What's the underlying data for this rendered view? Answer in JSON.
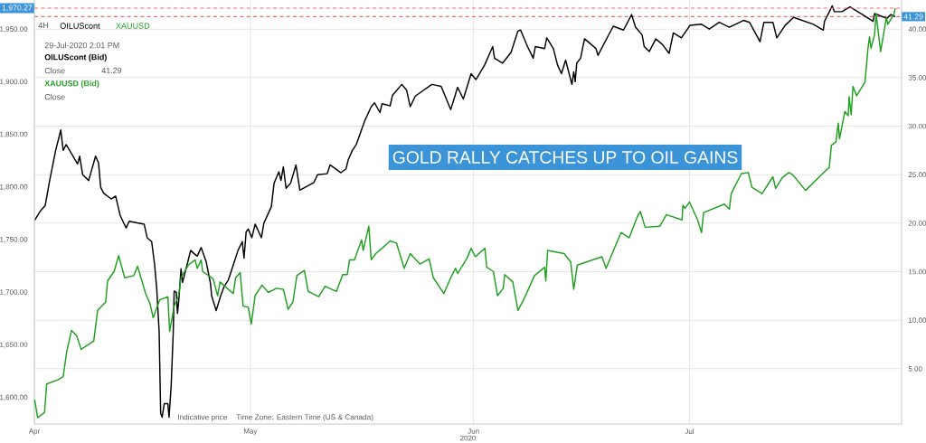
{
  "chart_data": {
    "type": "line",
    "title": "GOLD RALLY CATCHES UP TO OIL GAINS",
    "subtitle": "4H",
    "xlabel": "2020",
    "annotations": [
      "29-Jul-2020 2:01 PM",
      "OILUScont (Bid)",
      "Close",
      "41.29",
      "XAUUSD (Bid)",
      "Close",
      "Indicative price",
      "Time Zone: Eastern Time (US & Canada)"
    ],
    "xlim": [
      "2020-04-01",
      "2020-07-30T11:00"
    ],
    "xticks": [
      {
        "value": "2020-04-01",
        "label": "Apr"
      },
      {
        "value": "2020-05-01",
        "label": "May"
      },
      {
        "value": "2020-06-01",
        "label": "Jun"
      },
      {
        "value": "2020-07-01",
        "label": "Jul"
      }
    ],
    "ylim": [
      1575,
      1978
    ],
    "yticks": [
      {
        "value": 1600,
        "label": "1,600.00"
      },
      {
        "value": 1650,
        "label": "1,650.00"
      },
      {
        "value": 1700,
        "label": "1,700.00"
      },
      {
        "value": 1750,
        "label": "1,750.00"
      },
      {
        "value": 1800,
        "label": "1,800.00"
      },
      {
        "value": 1850,
        "label": "1,850.00"
      },
      {
        "value": 1900,
        "label": "1,900.00"
      },
      {
        "value": 1950,
        "label": "1,950.00"
      }
    ],
    "y2lim": [
      -0.7,
      43
    ],
    "y2ticks": [
      {
        "value": 5,
        "label": "5.00"
      },
      {
        "value": 10,
        "label": "10.00"
      },
      {
        "value": 15,
        "label": "15.00"
      },
      {
        "value": 20,
        "label": "20.00"
      },
      {
        "value": 25,
        "label": "25.00"
      },
      {
        "value": 30,
        "label": "30.00"
      },
      {
        "value": 35,
        "label": "35.00"
      },
      {
        "value": 40,
        "label": "40.00"
      }
    ],
    "grid": true,
    "legend": "top left",
    "ref_lines": [
      {
        "axis": "y",
        "value": 1970.27,
        "label": "1,970.27",
        "color": "#f26b6b",
        "line_style": "dashed"
      },
      {
        "axis": "y2",
        "value": 41.29,
        "label": "41.29",
        "color": "#f26b6b",
        "line_style": "dashed"
      }
    ],
    "series": [
      {
        "name": "OILUScont",
        "color": "#000000",
        "axis": "y2",
        "x": [
          "2020-04-01T01:00",
          "2020-04-01T21:00",
          "2020-04-02T12:00",
          "2020-04-03T03:00",
          "2020-04-03T23:00",
          "2020-04-04T16:00",
          "2020-04-05T00:00",
          "2020-04-05T10:00",
          "2020-04-07T00:00",
          "2020-04-07T07:00",
          "2020-04-07T17:00",
          "2020-04-08T13:00",
          "2020-04-09T12:00",
          "2020-04-09T22:00",
          "2020-04-10T05:00",
          "2020-04-10T15:00",
          "2020-04-11T16:00",
          "2020-04-12T07:00",
          "2020-04-12T22:00",
          "2020-04-13T18:00",
          "2020-04-14T04:00",
          "2020-04-16T06:00",
          "2020-04-16T16:00",
          "2020-04-17T07:00",
          "2020-04-17T17:00",
          "2020-04-18T00:00",
          "2020-04-18T08:00",
          "2020-04-18T13:00",
          "2020-04-18T18:00",
          "2020-04-19T01:00",
          "2020-04-19T13:00",
          "2020-04-19T17:00",
          "2020-04-20T00:00",
          "2020-04-20T07:00",
          "2020-04-20T10:00",
          "2020-04-20T17:00",
          "2020-04-20T21:00",
          "2020-04-21T01:00",
          "2020-04-21T09:00",
          "2020-04-21T14:00",
          "2020-04-22T05:00",
          "2020-04-22T17:00",
          "2020-04-23T03:00",
          "2020-04-23T15:00",
          "2020-04-24T04:00",
          "2020-04-24T21:00",
          "2020-04-25T11:00",
          "2020-04-25T15:00",
          "2020-04-26T06:00",
          "2020-04-26T21:00",
          "2020-04-27T09:00",
          "2020-04-27T22:00",
          "2020-04-28T11:00",
          "2020-04-29T07:00",
          "2020-04-29T21:00",
          "2020-04-30T03:00",
          "2020-04-30T10:00",
          "2020-04-30T17:00",
          "2020-05-01T05:00",
          "2020-05-01T16:00",
          "2020-05-02T13:00",
          "2020-05-02T21:00",
          "2020-05-03T22:00",
          "2020-05-04T07:00",
          "2020-05-04T23:00",
          "2020-05-05T06:00",
          "2020-05-05T14:00",
          "2020-05-05T23:00",
          "2020-05-06T14:00",
          "2020-05-07T08:00",
          "2020-05-07T21:00",
          "2020-05-09T20:00",
          "2020-05-10T08:00",
          "2020-05-11T16:00",
          "2020-05-12T02:00",
          "2020-05-13T14:00",
          "2020-05-14T07:00",
          "2020-05-14T14:00",
          "2020-05-15T04:00",
          "2020-05-15T17:00",
          "2020-05-16T22:00",
          "2020-05-17T19:00",
          "2020-05-18T06:00",
          "2020-05-19T00:00",
          "2020-05-19T07:00",
          "2020-05-20T10:00",
          "2020-05-20T18:00",
          "2020-05-22T01:00",
          "2020-05-22T17:00",
          "2020-05-23T05:00",
          "2020-05-23T22:00",
          "2020-05-26T05:00",
          "2020-05-27T12:00",
          "2020-05-28T20:00",
          "2020-05-29T19:00",
          "2020-05-30T14:00",
          "2020-05-31T16:00",
          "2020-06-01T08:00",
          "2020-06-02T13:00",
          "2020-06-03T16:00",
          "2020-06-03T22:00",
          "2020-06-05T01:00",
          "2020-06-06T05:00",
          "2020-06-07T04:00",
          "2020-06-07T13:00",
          "2020-06-08T12:00",
          "2020-06-09T07:00",
          "2020-06-09T14:00",
          "2020-06-10T21:00",
          "2020-06-11T04:00",
          "2020-06-12T02:00",
          "2020-06-12T16:00",
          "2020-06-13T05:00",
          "2020-06-13T19:00",
          "2020-06-14T16:00",
          "2020-06-14T22:00",
          "2020-06-15T03:00",
          "2020-06-15T08:00",
          "2020-06-15T21:00",
          "2020-06-16T10:00",
          "2020-06-18T00:00",
          "2020-06-18T07:00",
          "2020-06-19T15:00",
          "2020-06-20T10:00",
          "2020-06-21T20:00",
          "2020-06-22T23:00",
          "2020-06-23T12:00",
          "2020-06-24T10:00",
          "2020-06-24T17:00",
          "2020-06-25T10:00",
          "2020-06-26T08:00",
          "2020-06-27T06:00",
          "2020-06-28T04:00",
          "2020-06-28T18:00",
          "2020-06-29T21:00",
          "2020-07-01T02:00",
          "2020-07-02T16:00",
          "2020-07-03T18:00",
          "2020-07-05T03:00",
          "2020-07-06T13:00",
          "2020-07-08T12:00",
          "2020-07-09T08:00",
          "2020-07-10T19:00",
          "2020-07-11T08:00",
          "2020-07-12T14:00",
          "2020-07-13T03:00",
          "2020-07-14T07:00",
          "2020-07-15T11:00",
          "2020-07-18T05:00",
          "2020-07-19T14:00",
          "2020-07-19T18:00",
          "2020-07-20T20:00",
          "2020-07-21T03:00",
          "2020-07-22T04:00",
          "2020-07-23T07:00",
          "2020-07-24T20:00",
          "2020-07-26T12:00",
          "2020-07-26T17:00",
          "2020-07-28T10:00",
          "2020-07-28T23:00",
          "2020-07-29T14:00"
        ],
        "values": [
          20.3,
          21.3,
          21.8,
          24.4,
          27.5,
          29.6,
          27.5,
          28.1,
          26.1,
          26.9,
          25.0,
          24.4,
          26.9,
          26.2,
          23.7,
          23.1,
          22.5,
          22.8,
          20.8,
          19.5,
          20.2,
          19.9,
          18.5,
          18.1,
          15.7,
          13.2,
          8.8,
          0.4,
          0.0,
          1.4,
          1.4,
          0.0,
          3.2,
          8.8,
          13.0,
          12.9,
          10.7,
          11.9,
          15.3,
          13.9,
          15.7,
          17.2,
          16.9,
          16.6,
          17.5,
          16.0,
          13.8,
          12.5,
          11.0,
          12.5,
          13.5,
          14.1,
          15.3,
          17.2,
          18.1,
          16.4,
          19.1,
          19.4,
          18.5,
          19.9,
          18.5,
          20.0,
          21.7,
          24.1,
          25.3,
          24.4,
          25.8,
          23.6,
          24.1,
          26.0,
          23.4,
          24.2,
          25.0,
          25.1,
          26.0,
          25.2,
          25.6,
          26.5,
          27.5,
          28.1,
          30.6,
          32.0,
          32.4,
          31.4,
          32.3,
          32.1,
          33.2,
          34.3,
          33.7,
          32.0,
          33.1,
          34.3,
          34.1,
          31.7,
          34.0,
          32.8,
          35.4,
          34.8,
          36.3,
          38.2,
          37.0,
          36.5,
          37.6,
          39.8,
          39.9,
          38.2,
          37.0,
          38.2,
          38.0,
          39.1,
          38.0,
          36.3,
          35.4,
          36.8,
          34.3,
          35.6,
          34.6,
          36.5,
          37.0,
          39.0,
          38.0,
          37.3,
          39.2,
          40.3,
          39.9,
          41.5,
          40.2,
          39.4,
          38.2,
          37.7,
          39.0,
          38.4,
          37.5,
          39.6,
          39.1,
          40.4,
          40.5,
          40.0,
          40.7,
          40.2,
          40.9,
          40.7,
          38.7,
          40.7,
          40.7,
          39.1,
          40.4,
          41.2,
          40.5,
          39.9,
          40.8,
          42.4,
          41.8,
          41.8,
          42.3,
          41.6,
          40.8,
          41.6,
          41.1,
          41.5,
          41.29
        ]
      },
      {
        "name": "XAUUSD",
        "color": "#22a022",
        "axis": "y",
        "x": [
          "2020-04-01T01:00",
          "2020-04-01T11:00",
          "2020-04-02T10:00",
          "2020-04-02T17:00",
          "2020-04-04T06:00",
          "2020-04-05T00:00",
          "2020-04-05T12:00",
          "2020-04-06T04:00",
          "2020-04-06T21:00",
          "2020-04-07T12:00",
          "2020-04-08T10:00",
          "2020-04-09T06:00",
          "2020-04-09T19:00",
          "2020-04-10T22:00",
          "2020-04-11T04:00",
          "2020-04-12T02:00",
          "2020-04-12T17:00",
          "2020-04-13T13:00",
          "2020-04-14T19:00",
          "2020-04-15T08:00",
          "2020-04-16T11:00",
          "2020-04-17T02:00",
          "2020-04-17T12:00",
          "2020-04-18T10:00",
          "2020-04-19T13:00",
          "2020-04-19T19:00",
          "2020-04-20T10:00",
          "2020-04-21T01:00",
          "2020-04-21T09:00",
          "2020-04-22T09:00",
          "2020-04-23T08:00",
          "2020-04-23T15:00",
          "2020-04-24T04:00",
          "2020-04-24T09:00",
          "2020-04-25T20:00",
          "2020-04-26T11:00",
          "2020-04-26T19:00",
          "2020-04-28T15:00",
          "2020-04-28T23:00",
          "2020-04-29T14:00",
          "2020-04-30T00:00",
          "2020-04-30T17:00",
          "2020-05-01T03:00",
          "2020-05-01T16:00",
          "2020-05-02T15:00",
          "2020-05-03T12:00",
          "2020-05-04T15:00",
          "2020-05-05T14:00",
          "2020-05-06T06:00",
          "2020-05-06T22:00",
          "2020-05-07T11:00",
          "2020-05-08T12:00",
          "2020-05-09T01:00",
          "2020-05-10T12:00",
          "2020-05-11T09:00",
          "2020-05-12T23:00",
          "2020-05-13T20:00",
          "2020-05-14T11:00",
          "2020-05-14T19:00",
          "2020-05-15T11:00",
          "2020-05-16T11:00",
          "2020-05-16T16:00",
          "2020-05-17T11:00",
          "2020-05-17T19:00",
          "2020-05-18T10:00",
          "2020-05-19T07:00",
          "2020-05-20T10:00",
          "2020-05-21T07:00",
          "2020-05-22T09:00",
          "2020-05-23T05:00",
          "2020-05-24T13:00",
          "2020-05-25T20:00",
          "2020-05-26T10:00",
          "2020-05-27T21:00",
          "2020-05-28T20:00",
          "2020-05-29T12:00",
          "2020-05-29T19:00",
          "2020-05-31T03:00",
          "2020-05-31T16:00",
          "2020-06-01T06:00",
          "2020-06-02T14:00",
          "2020-06-02T20:00",
          "2020-06-03T18:00",
          "2020-06-04T08:00",
          "2020-06-05T03:00",
          "2020-06-05T08:00",
          "2020-06-06T11:00",
          "2020-06-07T04:00",
          "2020-06-07T23:00",
          "2020-06-09T11:00",
          "2020-06-10T21:00",
          "2020-06-11T01:00",
          "2020-06-11T07:00",
          "2020-06-13T14:00",
          "2020-06-14T12:00",
          "2020-06-14T22:00",
          "2020-06-15T10:00",
          "2020-06-18T20:00",
          "2020-06-19T10:00",
          "2020-06-20T15:00",
          "2020-06-21T12:00",
          "2020-06-22T15:00",
          "2020-06-23T18:00",
          "2020-06-24T04:00",
          "2020-06-24T20:00",
          "2020-06-26T21:00",
          "2020-06-27T19:00",
          "2020-06-29T23:00",
          "2020-06-30T02:00",
          "2020-06-30T09:00",
          "2020-07-01T00:00",
          "2020-07-02T03:00",
          "2020-07-02T16:00",
          "2020-07-02T23:00",
          "2020-07-05T20:00",
          "2020-07-06T13:00",
          "2020-07-06T19:00",
          "2020-07-08T05:00",
          "2020-07-09T04:00",
          "2020-07-09T16:00",
          "2020-07-11T02:00",
          "2020-07-12T14:00",
          "2020-07-12T23:00",
          "2020-07-13T21:00",
          "2020-07-14T19:00",
          "2020-07-15T08:00",
          "2020-07-17T03:00",
          "2020-07-19T01:00",
          "2020-07-20T10:00",
          "2020-07-20T17:00",
          "2020-07-21T08:00",
          "2020-07-21T16:00",
          "2020-07-21T20:00",
          "2020-07-22T14:00",
          "2020-07-23T01:00",
          "2020-07-23T04:00",
          "2020-07-23T11:00",
          "2020-07-23T17:00",
          "2020-07-24T05:00",
          "2020-07-25T09:00",
          "2020-07-25T19:00",
          "2020-07-26T00:00",
          "2020-07-26T05:00",
          "2020-07-26T17:00",
          "2020-07-26T22:00",
          "2020-07-27T13:00",
          "2020-07-28T08:00",
          "2020-07-28T13:00",
          "2020-07-29T09:00",
          "2020-07-29T14:00"
        ],
        "values": [
          1598,
          1581,
          1586,
          1613,
          1617,
          1620,
          1644,
          1664,
          1659,
          1646,
          1650,
          1654,
          1683,
          1691,
          1711,
          1720,
          1735,
          1714,
          1716,
          1725,
          1699,
          1689,
          1676,
          1693,
          1696,
          1663,
          1687,
          1697,
          1714,
          1726,
          1731,
          1723,
          1731,
          1720,
          1713,
          1697,
          1710,
          1699,
          1714,
          1719,
          1687,
          1686,
          1670,
          1697,
          1707,
          1700,
          1704,
          1703,
          1684,
          1691,
          1716,
          1721,
          1701,
          1696,
          1706,
          1701,
          1717,
          1717,
          1731,
          1731,
          1750,
          1740,
          1763,
          1731,
          1737,
          1742,
          1749,
          1747,
          1723,
          1737,
          1727,
          1732,
          1714,
          1699,
          1714,
          1723,
          1718,
          1733,
          1742,
          1734,
          1742,
          1724,
          1720,
          1697,
          1704,
          1717,
          1710,
          1683,
          1693,
          1716,
          1724,
          1711,
          1740,
          1737,
          1729,
          1703,
          1726,
          1734,
          1723,
          1743,
          1757,
          1752,
          1772,
          1777,
          1762,
          1763,
          1774,
          1769,
          1783,
          1780,
          1786,
          1769,
          1757,
          1776,
          1784,
          1779,
          1794,
          1813,
          1814,
          1800,
          1794,
          1810,
          1799,
          1809,
          1814,
          1812,
          1797,
          1810,
          1819,
          1840,
          1843,
          1861,
          1846,
          1872,
          1868,
          1886,
          1869,
          1896,
          1887,
          1900,
          1932,
          1943,
          1932,
          1945,
          1965,
          1929,
          1961,
          1955,
          1964,
          1970.27
        ]
      }
    ]
  }
}
